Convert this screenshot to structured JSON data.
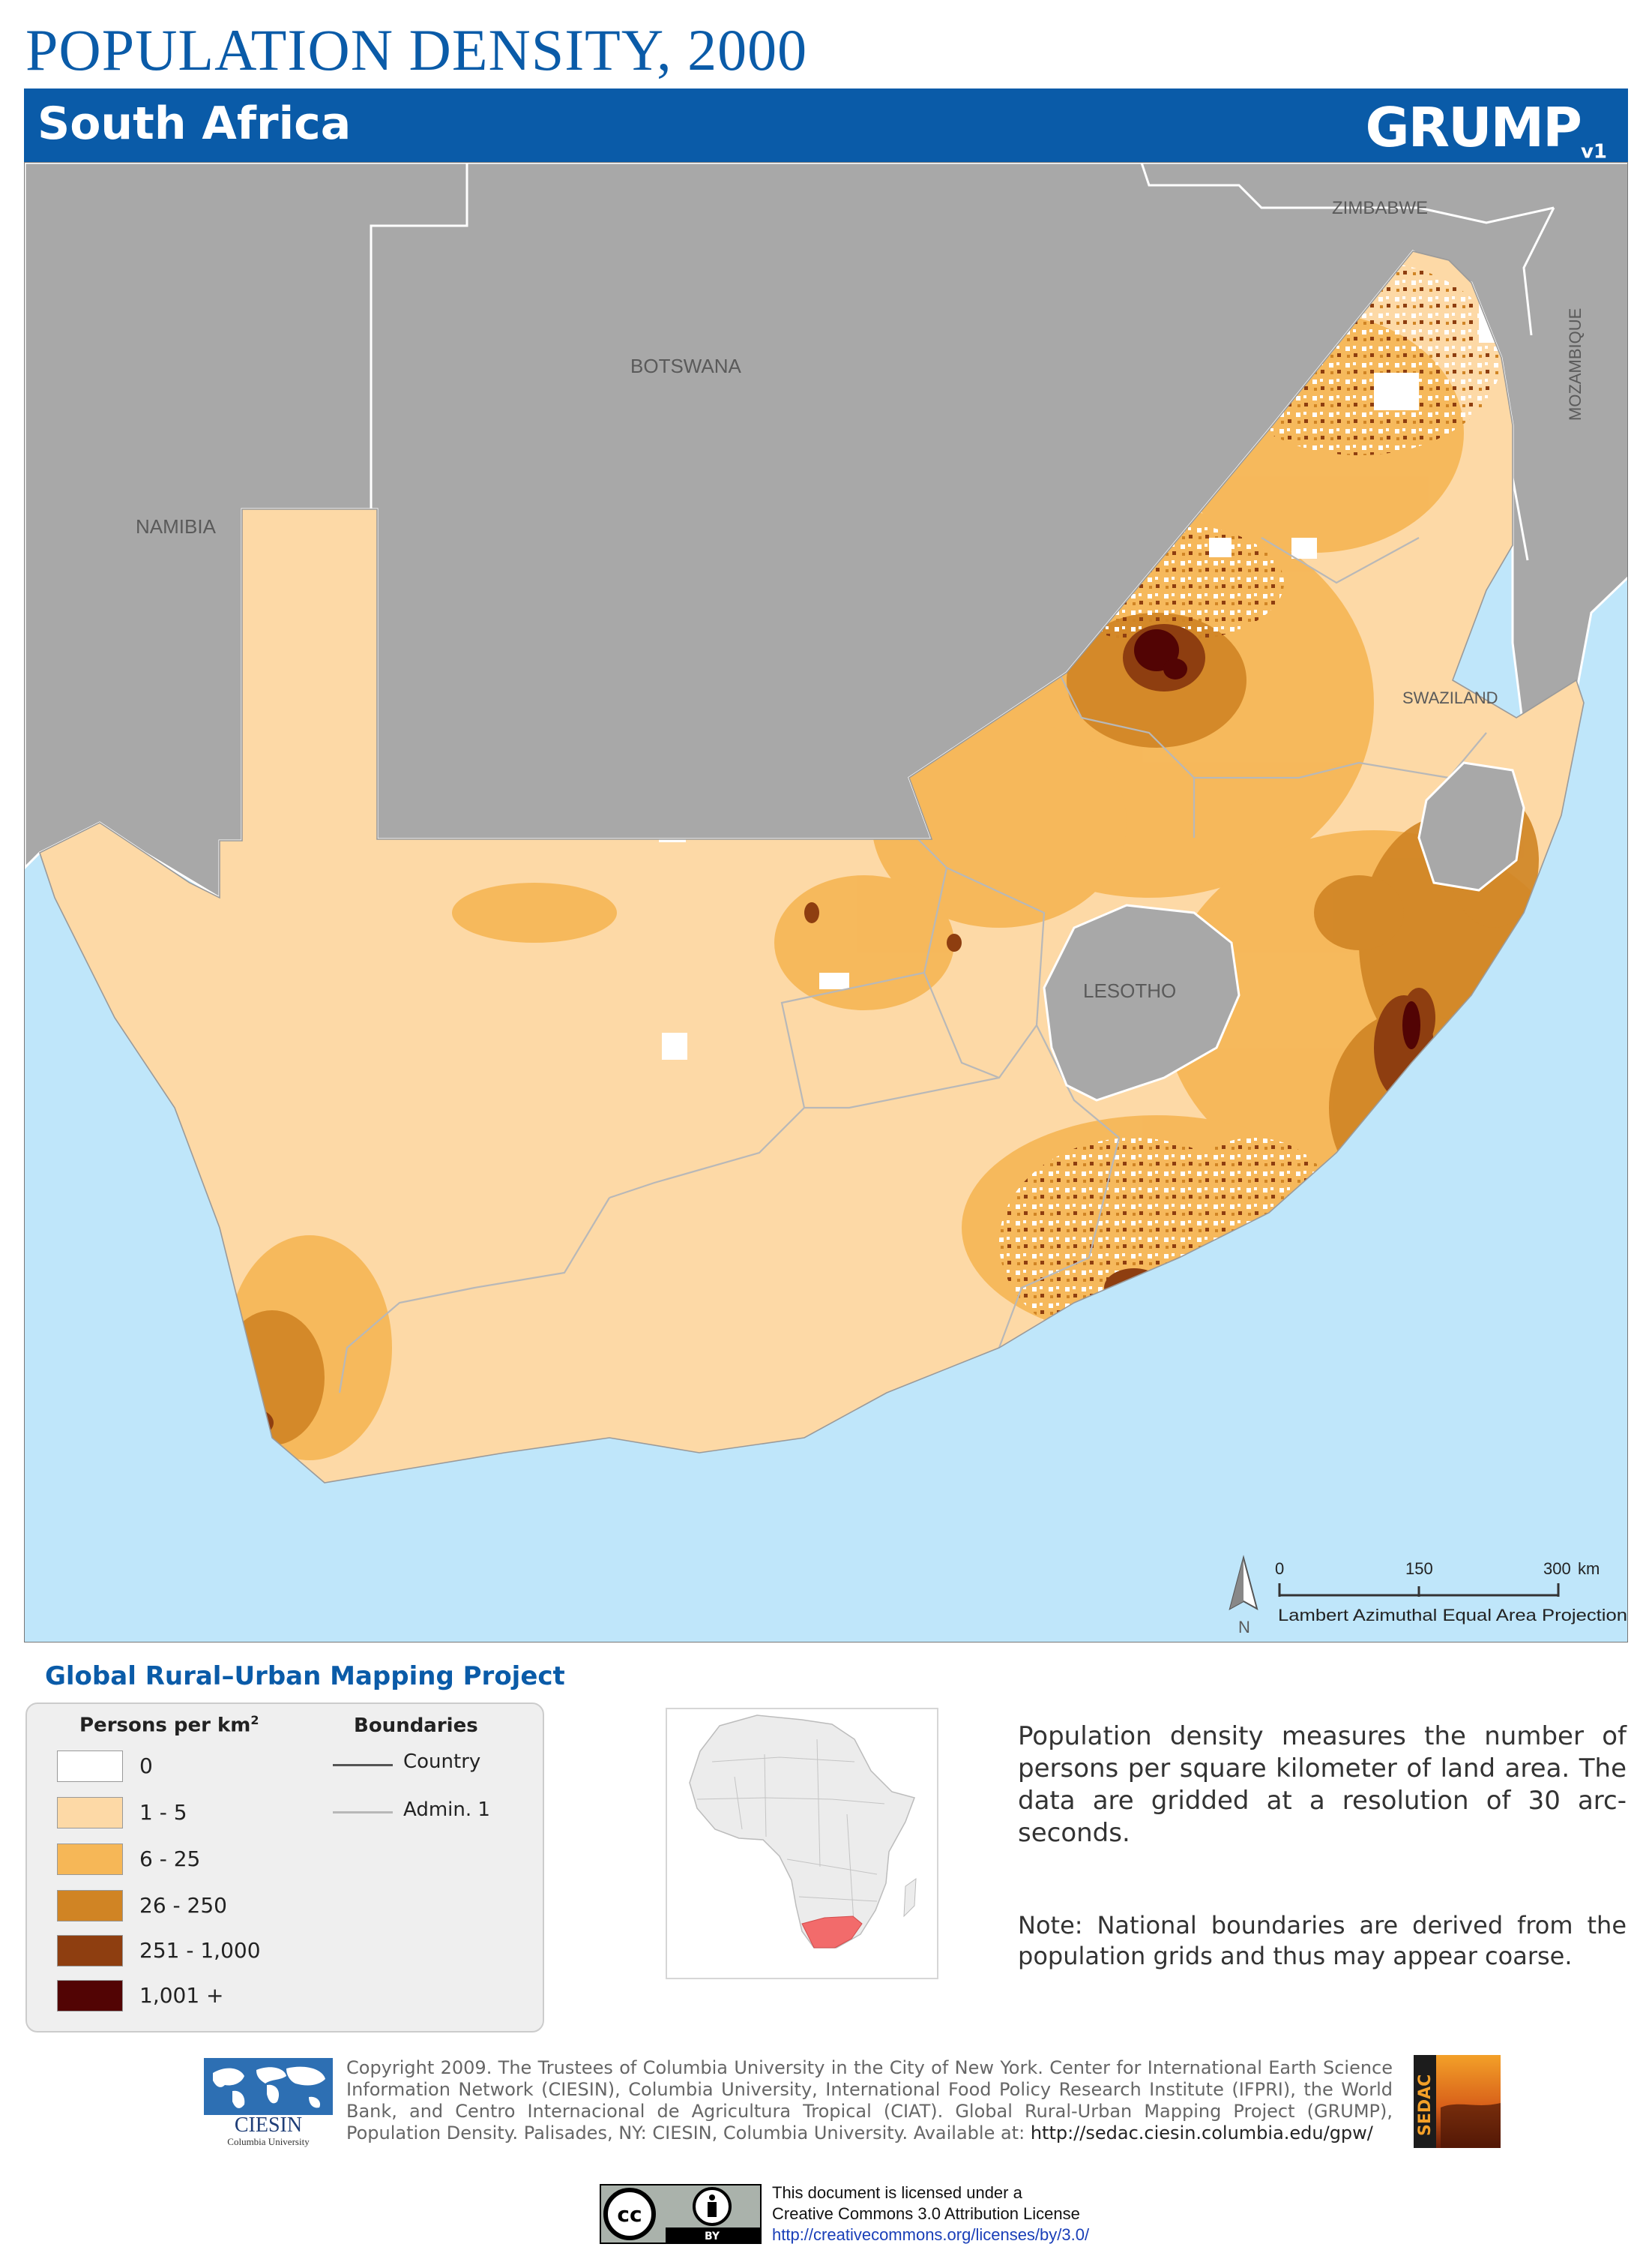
{
  "title": "POPULATION DENSITY, 2000",
  "country": "South Africa",
  "brand": {
    "name": "GRUMP",
    "version": "v1"
  },
  "map": {
    "neighbor_labels": [
      "ZIMBABWE",
      "BOTSWANA",
      "NAMIBIA",
      "MOZAMBIQUE",
      "SWAZILAND",
      "LESOTHO"
    ],
    "scale_bar": {
      "ticks": [
        "0",
        "150",
        "300"
      ],
      "unit": "km"
    },
    "north_label": "N",
    "projection": "Lambert Azimuthal Equal Area Projection",
    "colors": {
      "ocean": "#bfe6fa",
      "neighbors": "#a8a8a8",
      "border": "#ffffff"
    }
  },
  "project_name": "Global Rural–Urban Mapping Project",
  "legend": {
    "density_title": "Persons per km",
    "density_title_sup": "2",
    "classes": [
      {
        "label": "0",
        "color": "#ffffff"
      },
      {
        "label": "1 - 5",
        "color": "#fdd9a6"
      },
      {
        "label": "6 - 25",
        "color": "#f6b757"
      },
      {
        "label": "26 - 250",
        "color": "#d08424"
      },
      {
        "label": "251 - 1,000",
        "color": "#8e3e10"
      },
      {
        "label": "1,001 +",
        "color": "#520404"
      }
    ],
    "boundaries_title": "Boundaries",
    "boundaries": [
      {
        "label": "Country",
        "color": "#555555"
      },
      {
        "label": "Admin. 1",
        "color": "#b8b8b8"
      }
    ]
  },
  "description": "Population density measures the number of persons per square kilometer of land area. The data are gridded at a resolution of 30 arc-seconds.",
  "note": "Note: National boundaries are derived from the population grids and thus may appear coarse.",
  "copyright": "Copyright 2009. The Trustees of Columbia University in the City of New York. Center for International Earth Science Information Network (CIESIN), Columbia University, International Food Policy Research Institute (IFPRI), the World Bank, and Centro Internacional de Agricultura Tropical (CIAT). Global Rural-Urban Mapping Project (GRUMP), Population Density. Palisades, NY: CIESIN, Columbia University. Available at:",
  "copyright_url": "http://sedac.ciesin.columbia.edu/gpw/",
  "ciesin_logo": {
    "name": "CIESIN",
    "sub": "Columbia University"
  },
  "sedac_logo": "SEDAC",
  "license": {
    "line1": "This document is licensed under a",
    "line2": "Creative Commons 3.0 Attribution License",
    "url": "http://creativecommons.org/licenses/by/3.0/",
    "badge_by": "BY"
  }
}
